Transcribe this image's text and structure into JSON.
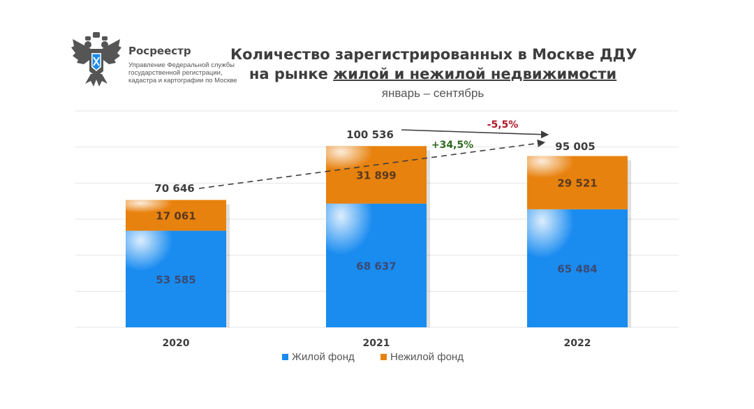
{
  "header": {
    "org_name": "Росреестр",
    "org_lines": [
      "Управление Федеральной службы",
      "государственной регистрации,",
      "кадастра и картографии по Москве"
    ],
    "title_line_1": "Количество зарегистрированных в Москве ДДУ",
    "title_line_2_prefix": "на рынке ",
    "title_line_2_underlined": "жилой и нежилой недвижимости",
    "subtitle": "январь – сентябрь"
  },
  "colors": {
    "residential": "#1a8cf0",
    "nonresidential": "#e8820f",
    "up_change": "#2e6b1f",
    "down_change": "#b0182a",
    "text": "#3d3d3d",
    "gridline": "#e6e6e6"
  },
  "chart_data": {
    "type": "bar",
    "stacked": true,
    "categories": [
      "2020",
      "2021",
      "2022"
    ],
    "series": [
      {
        "name": "Жилой фонд",
        "values": [
          53585,
          68637,
          65484
        ],
        "labels": [
          "53 585",
          "68 637",
          "65 484"
        ],
        "color": "#1a8cf0"
      },
      {
        "name": "Нежилой фонд",
        "values": [
          17061,
          31899,
          29521
        ],
        "labels": [
          "17 061",
          "31 899",
          "29 521"
        ],
        "color": "#e8820f"
      }
    ],
    "totals": [
      70646,
      100536,
      95005
    ],
    "total_labels": [
      "70 646",
      "100 536",
      "95 005"
    ],
    "annotations": [
      {
        "text": "+34,5%",
        "from": "2020",
        "to": "2022",
        "style": "dashed"
      },
      {
        "text": "-5,5%",
        "from": "2021",
        "to": "2022",
        "style": "solid"
      }
    ],
    "ylim": [
      0,
      120000
    ],
    "grid": true,
    "legend": "bottom"
  }
}
